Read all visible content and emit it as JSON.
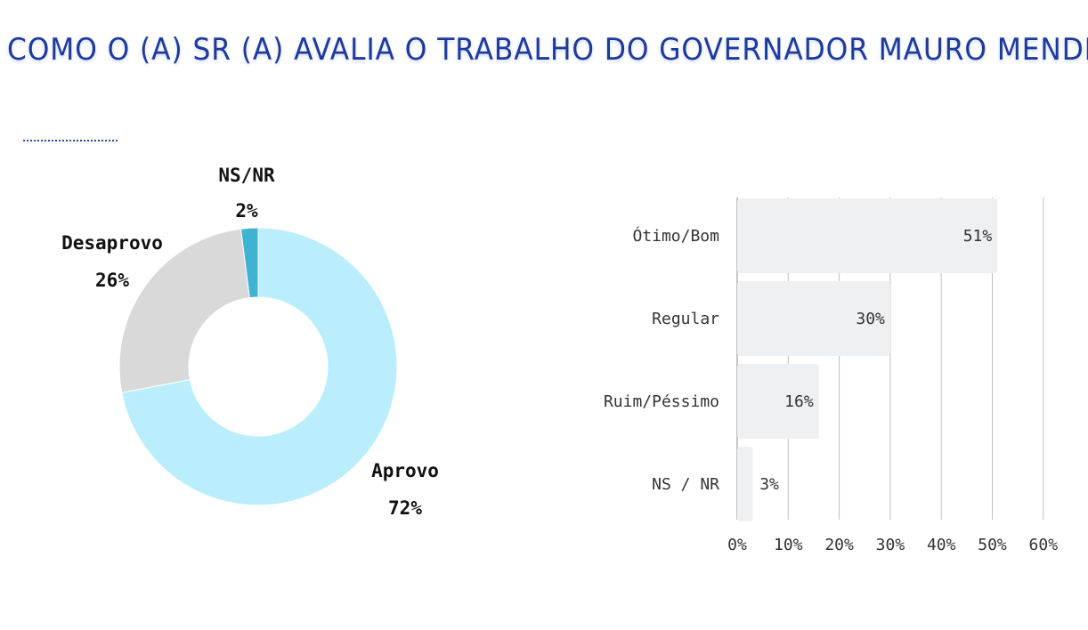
{
  "title": "COMO O (A) SR (A) AVALIA O TRABALHO DO GOVERNADOR MAURO MENDES?",
  "colors": {
    "title": "#1e3a9c",
    "aprovo": "#bbeefc",
    "desaprovo": "#d9d9d9",
    "nsnr": "#3fb3d1",
    "bar_fill": "#eef0f1",
    "grid": "#bfbfbf"
  },
  "chart_data": [
    {
      "type": "pie",
      "variant": "donut",
      "slices": [
        {
          "label": "Aprovo",
          "value": 72,
          "value_label": "72%",
          "color": "#bbeefc"
        },
        {
          "label": "Desaprovo",
          "value": 26,
          "value_label": "26%",
          "color": "#d9d9d9"
        },
        {
          "label": "NS/NR",
          "value": 2,
          "value_label": "2%",
          "color": "#3fb3d1"
        }
      ]
    },
    {
      "type": "bar",
      "orientation": "horizontal",
      "categories": [
        "Ótimo/Bom",
        "Regular",
        "Ruim/Péssimo",
        "NS / NR"
      ],
      "values": [
        51,
        30,
        16,
        3
      ],
      "value_labels": [
        "51%",
        "30%",
        "16%",
        "3%"
      ],
      "xlim": [
        0,
        60
      ],
      "xticks": [
        "0%",
        "10%",
        "20%",
        "30%",
        "40%",
        "50%",
        "60%"
      ],
      "grid": true
    }
  ]
}
